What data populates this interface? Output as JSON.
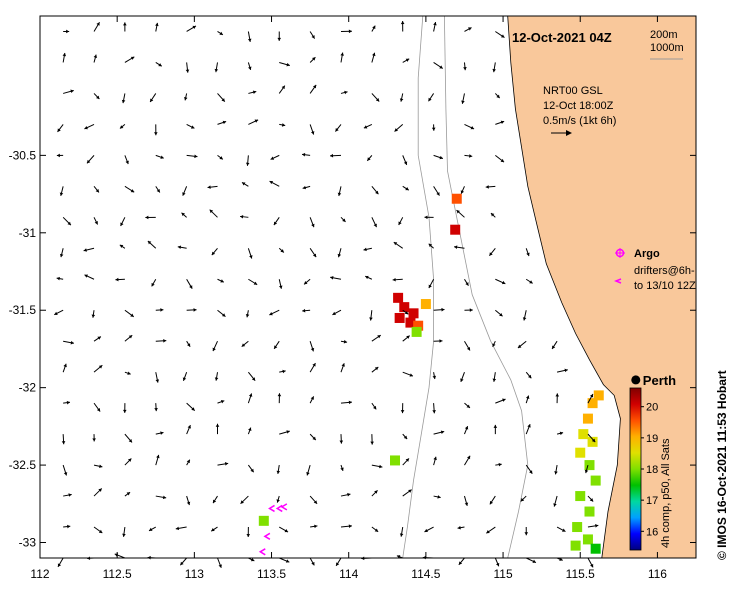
{
  "title": "12-Oct-2021 04Z",
  "isobath_legend": [
    "200m",
    "1000m"
  ],
  "velocity_info": {
    "source": "NRT00 GSL",
    "time": "12-Oct 18:00Z",
    "scale": "0.5m/s (1kt 6h)"
  },
  "argo_label": "Argo",
  "drifters_label": [
    "drifters@6h-",
    "to 13/10 12Z"
  ],
  "city_label": "Perth",
  "colorbar": {
    "ticks": [
      "16",
      "17",
      "18",
      "19",
      "20"
    ],
    "label": "4h comp, p50, All Sats",
    "colors": [
      "#000080",
      "#0000ff",
      "#00a0ff",
      "#00d8a0",
      "#00c000",
      "#80e000",
      "#e0e000",
      "#ffb000",
      "#ff5000",
      "#d00000",
      "#800000"
    ]
  },
  "credit": "© IMOS 16-Oct-2021 11:53 Hobart",
  "land_color": "#f9c89b",
  "chart_data": {
    "type": "map",
    "xlim": [
      112,
      116.25
    ],
    "ylim": [
      -33.1,
      -29.6
    ],
    "x_ticks": [
      112,
      112.5,
      113,
      113.5,
      114,
      114.5,
      115,
      115.5,
      116
    ],
    "x_tick_labels": [
      "112",
      "112.5",
      "113",
      "113.5",
      "114",
      "114.5",
      "115",
      "115.5",
      "116"
    ],
    "y_ticks": [
      -30.5,
      -31,
      -31.5,
      -32,
      -32.5,
      -33
    ],
    "y_tick_labels": [
      "-30.5",
      "-31",
      "-31.5",
      "-32",
      "-32.5",
      "-33"
    ],
    "city": {
      "name": "Perth",
      "lon": 115.86,
      "lat": -31.95
    },
    "coastline": [
      [
        115.03,
        -29.6
      ],
      [
        115.05,
        -29.9
      ],
      [
        115.08,
        -30.2
      ],
      [
        115.12,
        -30.45
      ],
      [
        115.16,
        -30.7
      ],
      [
        115.22,
        -30.95
      ],
      [
        115.28,
        -31.2
      ],
      [
        115.38,
        -31.45
      ],
      [
        115.47,
        -31.65
      ],
      [
        115.56,
        -31.82
      ],
      [
        115.65,
        -31.98
      ],
      [
        115.72,
        -32.05
      ],
      [
        115.76,
        -32.2
      ],
      [
        115.74,
        -32.5
      ],
      [
        115.68,
        -32.8
      ],
      [
        115.64,
        -33.1
      ]
    ],
    "isobath_200m": [
      [
        114.62,
        -29.6
      ],
      [
        114.63,
        -30.2
      ],
      [
        114.64,
        -30.6
      ],
      [
        114.72,
        -31.0
      ],
      [
        114.8,
        -31.4
      ],
      [
        114.92,
        -31.7
      ],
      [
        115.05,
        -31.95
      ],
      [
        115.12,
        -32.15
      ],
      [
        115.16,
        -32.5
      ],
      [
        115.1,
        -32.8
      ],
      [
        115.03,
        -33.1
      ]
    ],
    "isobath_1000m": [
      [
        114.48,
        -29.6
      ],
      [
        114.45,
        -30.0
      ],
      [
        114.45,
        -30.5
      ],
      [
        114.52,
        -30.9
      ],
      [
        114.55,
        -31.3
      ],
      [
        114.55,
        -31.7
      ],
      [
        114.52,
        -32.0
      ],
      [
        114.47,
        -32.3
      ],
      [
        114.42,
        -32.6
      ],
      [
        114.38,
        -32.9
      ],
      [
        114.35,
        -33.1
      ]
    ],
    "sst_patches": [
      {
        "lon": 114.7,
        "lat": -30.78,
        "sst": 19.8
      },
      {
        "lon": 114.69,
        "lat": -30.98,
        "sst": 19.9
      },
      {
        "lon": 114.32,
        "lat": -31.42,
        "sst": 20.1
      },
      {
        "lon": 114.36,
        "lat": -31.48,
        "sst": 20.3
      },
      {
        "lon": 114.42,
        "lat": -31.52,
        "sst": 20.0
      },
      {
        "lon": 114.33,
        "lat": -31.55,
        "sst": 20.2
      },
      {
        "lon": 114.4,
        "lat": -31.58,
        "sst": 19.9
      },
      {
        "lon": 114.45,
        "lat": -31.6,
        "sst": 19.6
      },
      {
        "lon": 114.5,
        "lat": -31.46,
        "sst": 19.0
      },
      {
        "lon": 114.44,
        "lat": -31.64,
        "sst": 18.2
      },
      {
        "lon": 114.3,
        "lat": -32.47,
        "sst": 18.0
      },
      {
        "lon": 115.58,
        "lat": -32.1,
        "sst": 19.2
      },
      {
        "lon": 115.62,
        "lat": -32.05,
        "sst": 18.9
      },
      {
        "lon": 115.55,
        "lat": -32.2,
        "sst": 18.8
      },
      {
        "lon": 115.52,
        "lat": -32.3,
        "sst": 18.5
      },
      {
        "lon": 115.58,
        "lat": -32.35,
        "sst": 18.3
      },
      {
        "lon": 115.5,
        "lat": -32.42,
        "sst": 18.6
      },
      {
        "lon": 115.56,
        "lat": -32.5,
        "sst": 18.1
      },
      {
        "lon": 115.6,
        "lat": -32.6,
        "sst": 17.9
      },
      {
        "lon": 115.5,
        "lat": -32.7,
        "sst": 18.0
      },
      {
        "lon": 115.56,
        "lat": -32.8,
        "sst": 17.8
      },
      {
        "lon": 115.48,
        "lat": -32.9,
        "sst": 17.9
      },
      {
        "lon": 115.55,
        "lat": -32.98,
        "sst": 18.0
      },
      {
        "lon": 115.6,
        "lat": -33.04,
        "sst": 17.7
      },
      {
        "lon": 115.47,
        "lat": -33.02,
        "sst": 17.8
      },
      {
        "lon": 113.45,
        "lat": -32.86,
        "sst": 17.9
      }
    ],
    "drifters": [
      {
        "lon": 113.5,
        "lat": -32.78
      },
      {
        "lon": 113.55,
        "lat": -32.78
      },
      {
        "lon": 113.58,
        "lat": -32.77
      },
      {
        "lon": 113.47,
        "lat": -32.96
      },
      {
        "lon": 113.44,
        "lat": -33.06
      }
    ],
    "currents_grid": {
      "lon_start": 112.15,
      "lon_step": 0.2,
      "lon_count": 19,
      "lat_start": -29.7,
      "lat_step": -0.2,
      "lat_count": 18
    }
  }
}
